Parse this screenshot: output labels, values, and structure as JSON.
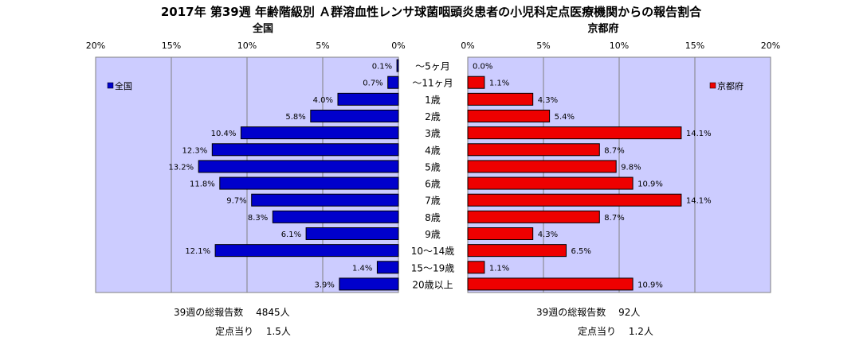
{
  "title": "2017年 第39週 年齢階級別 Ａ群溶血性レンサ球菌咽頭炎患者の小児科定点医療機関からの報告割合",
  "chart_data": [
    {
      "type": "bar",
      "orientation": "horizontal",
      "title": "全国",
      "legend": "全国",
      "legend_position": "top-left",
      "xlim": [
        0,
        20
      ],
      "ticks": [
        "20%",
        "15%",
        "10%",
        "5%",
        "0%"
      ],
      "grid": true,
      "color": "#0000cc",
      "categories": [
        "～5ヶ月",
        "～11ヶ月",
        "1歳",
        "2歳",
        "3歳",
        "4歳",
        "5歳",
        "6歳",
        "7歳",
        "8歳",
        "9歳",
        "10～14歳",
        "15～19歳",
        "20歳以上"
      ],
      "values": [
        0.1,
        0.7,
        4.0,
        5.8,
        10.4,
        12.3,
        13.2,
        11.8,
        9.7,
        8.3,
        6.1,
        12.1,
        1.4,
        3.9
      ],
      "labels": [
        "0.1%",
        "0.7%",
        "4.0%",
        "5.8%",
        "10.4%",
        "12.3%",
        "13.2%",
        "11.8%",
        "9.7%",
        "8.3%",
        "6.1%",
        "12.1%",
        "1.4%",
        "3.9%"
      ]
    },
    {
      "type": "bar",
      "orientation": "horizontal",
      "title": "京都府",
      "legend": "京都府",
      "legend_position": "top-right",
      "xlim": [
        0,
        20
      ],
      "ticks": [
        "0%",
        "5%",
        "10%",
        "15%",
        "20%"
      ],
      "grid": true,
      "color": "#ee0000",
      "categories": [
        "～5ヶ月",
        "～11ヶ月",
        "1歳",
        "2歳",
        "3歳",
        "4歳",
        "5歳",
        "6歳",
        "7歳",
        "8歳",
        "9歳",
        "10～14歳",
        "15～19歳",
        "20歳以上"
      ],
      "values": [
        0.0,
        1.1,
        4.3,
        5.4,
        14.1,
        8.7,
        9.8,
        10.9,
        14.1,
        8.7,
        4.3,
        6.5,
        1.1,
        10.9
      ],
      "labels": [
        "0.0%",
        "1.1%",
        "4.3%",
        "5.4%",
        "14.1%",
        "8.7%",
        "9.8%",
        "10.9%",
        "14.1%",
        "8.7%",
        "4.3%",
        "6.5%",
        "1.1%",
        "10.9%"
      ]
    }
  ],
  "footer": {
    "national_total": "39週の総報告数　 4845人",
    "national_per_site": "定点当り　 1.5人",
    "kyoto_total": "39週の総報告数　 92人",
    "kyoto_per_site": "定点当り　 1.2人"
  }
}
